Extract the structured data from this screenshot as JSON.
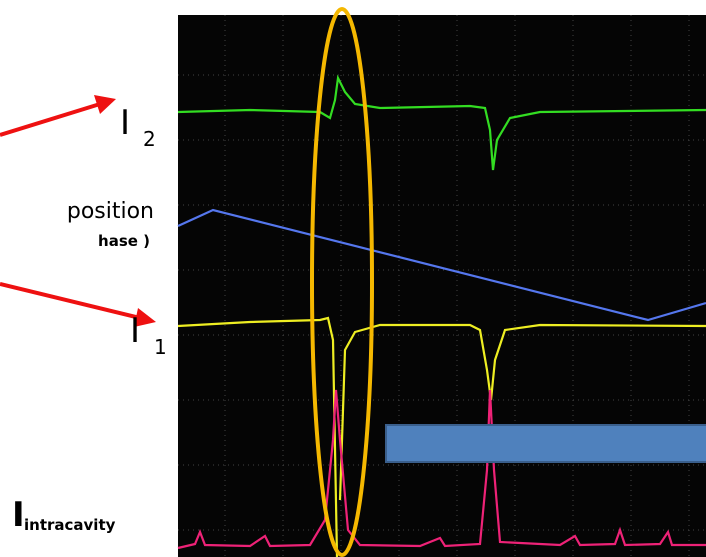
{
  "annotations": {
    "i2": {
      "main": "I",
      "sub": "2"
    },
    "position": {
      "line1": "position",
      "line2": "hase  )"
    },
    "i1": {
      "main": "I",
      "sub": "1"
    },
    "intracavity": {
      "main": "I",
      "sub": "intracavity"
    }
  }
}
